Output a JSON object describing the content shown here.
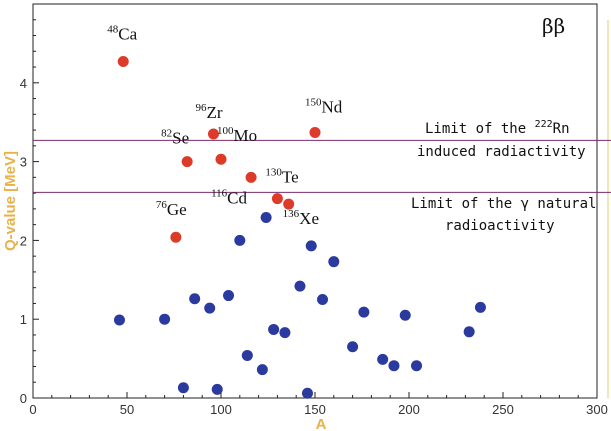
{
  "chart_data": {
    "type": "scatter",
    "title": "",
    "panel_tag": "ββ",
    "xlabel": "A",
    "ylabel": "Q-value [MeV]",
    "xlim": [
      0,
      300
    ],
    "ylim": [
      0,
      5
    ],
    "x_ticks": [
      "0",
      "50",
      "100",
      "150",
      "200",
      "250",
      "300"
    ],
    "y_ticks": [
      "0",
      "1",
      "2",
      "3",
      "4"
    ],
    "grid": false,
    "colors": {
      "highlighted": "#dd3a2a",
      "other": "#2b3a9e",
      "limit_line": "#7a2b6e",
      "axis_title": "#e8b24a"
    },
    "limits": [
      {
        "y": 3.27,
        "text_line1_pre": "Limit of the ",
        "sup": "222",
        "text_line1_post": "Rn",
        "text_line2": "induced radiactivity"
      },
      {
        "y": 2.61,
        "text_line1": "Limit of the γ natural",
        "text_line2": "radioactivity"
      }
    ],
    "highlighted_points": [
      {
        "mass": "48",
        "symbol": "Ca",
        "x": 48,
        "y": 4.27
      },
      {
        "mass": "96",
        "symbol": "Zr",
        "x": 96,
        "y": 3.35
      },
      {
        "mass": "150",
        "symbol": "Nd",
        "x": 150,
        "y": 3.37
      },
      {
        "mass": "82",
        "symbol": "Se",
        "x": 82,
        "y": 3.0
      },
      {
        "mass": "100",
        "symbol": "Mo",
        "x": 100,
        "y": 3.03
      },
      {
        "mass": "116",
        "symbol": "Cd",
        "x": 116,
        "y": 2.8
      },
      {
        "mass": "130",
        "symbol": "Te",
        "x": 130,
        "y": 2.53
      },
      {
        "mass": "136",
        "symbol": "Xe",
        "x": 136,
        "y": 2.46
      },
      {
        "mass": "76",
        "symbol": "Ge",
        "x": 76,
        "y": 2.04
      }
    ],
    "other_points": [
      {
        "x": 46,
        "y": 0.99
      },
      {
        "x": 70,
        "y": 1.0
      },
      {
        "x": 80,
        "y": 0.13
      },
      {
        "x": 86,
        "y": 1.26
      },
      {
        "x": 94,
        "y": 1.14
      },
      {
        "x": 98,
        "y": 0.11
      },
      {
        "x": 104,
        "y": 1.3
      },
      {
        "x": 110,
        "y": 2.0
      },
      {
        "x": 114,
        "y": 0.54
      },
      {
        "x": 122,
        "y": 0.36
      },
      {
        "x": 124,
        "y": 2.29
      },
      {
        "x": 128,
        "y": 0.87
      },
      {
        "x": 134,
        "y": 0.83
      },
      {
        "x": 142,
        "y": 1.42
      },
      {
        "x": 146,
        "y": 0.06
      },
      {
        "x": 148,
        "y": 1.93
      },
      {
        "x": 154,
        "y": 1.25
      },
      {
        "x": 160,
        "y": 1.73
      },
      {
        "x": 170,
        "y": 0.65
      },
      {
        "x": 176,
        "y": 1.09
      },
      {
        "x": 186,
        "y": 0.49
      },
      {
        "x": 192,
        "y": 0.41
      },
      {
        "x": 198,
        "y": 1.05
      },
      {
        "x": 204,
        "y": 0.41
      },
      {
        "x": 232,
        "y": 0.84
      },
      {
        "x": 238,
        "y": 1.15
      }
    ]
  }
}
